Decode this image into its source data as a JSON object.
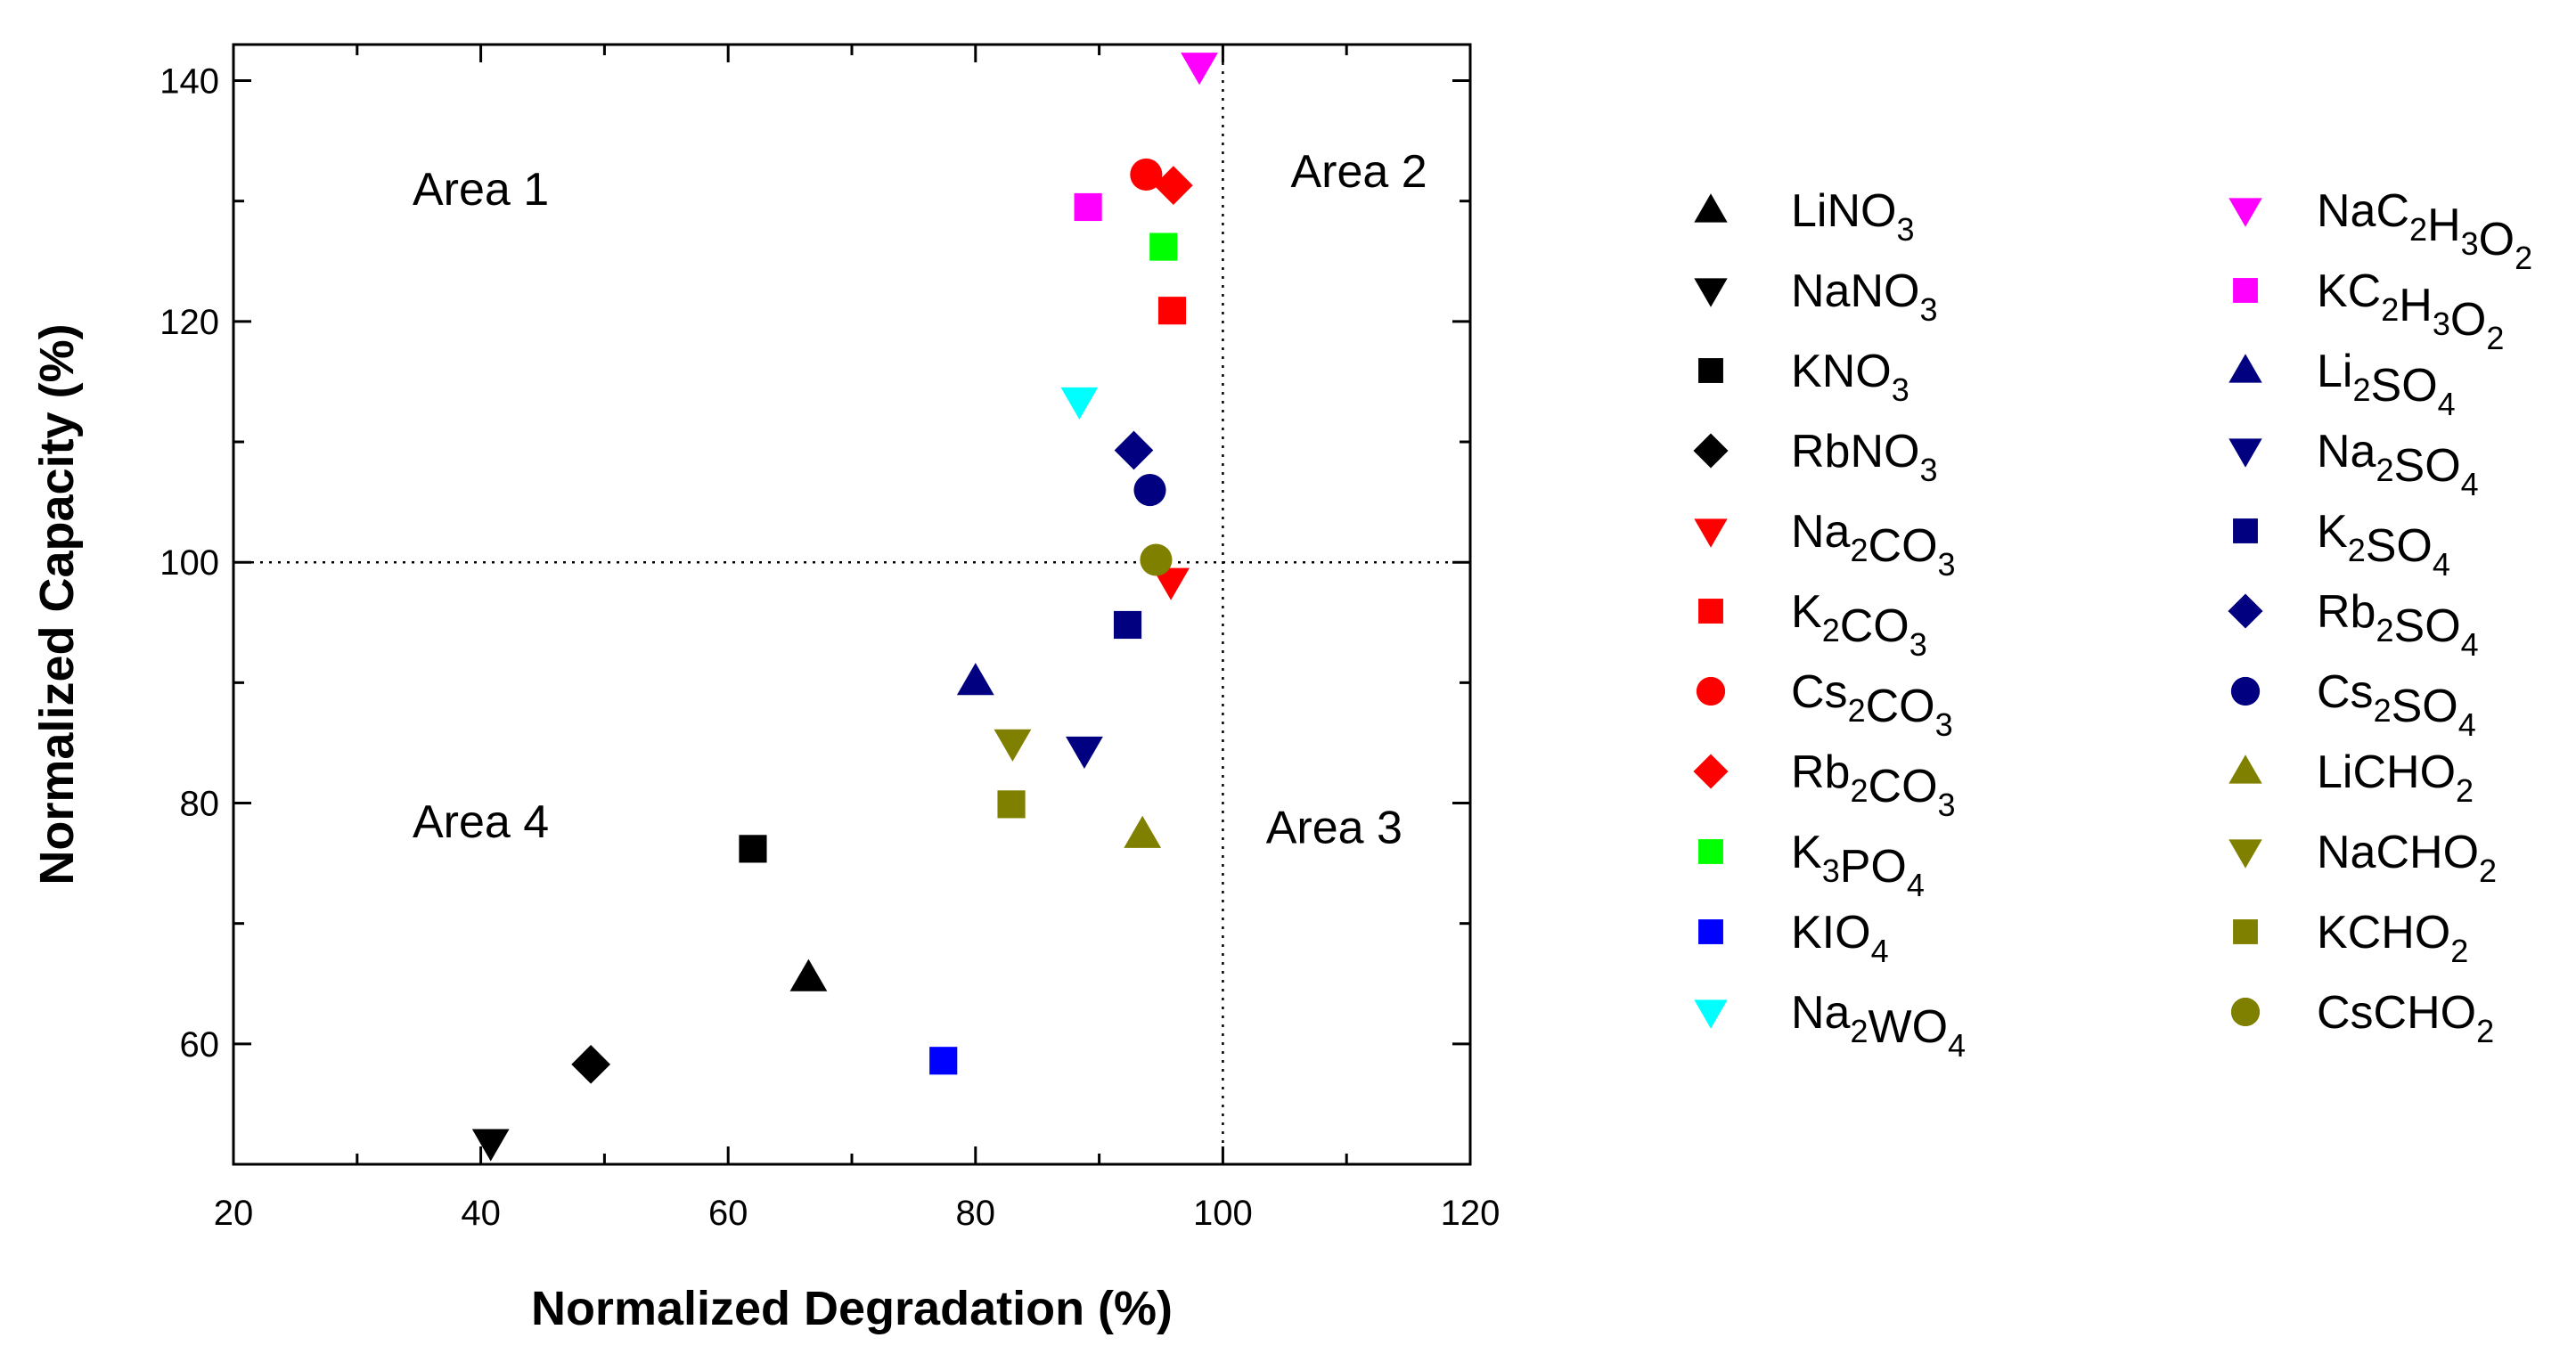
{
  "chart_data": {
    "type": "scatter",
    "title": "",
    "xlabel": "Normalized Degradation (%)",
    "ylabel": "Normalized Capacity (%)",
    "xlim": [
      20,
      120
    ],
    "ylim": [
      50,
      143
    ],
    "xticks": [
      20,
      40,
      60,
      80,
      100,
      120
    ],
    "yticks": [
      60,
      80,
      100,
      120,
      140
    ],
    "grid": false,
    "reference_lines": {
      "x": 100,
      "y": 100,
      "style": "dotted"
    },
    "annotations": [
      {
        "text": "Area 1",
        "x": 40,
        "y": 131
      },
      {
        "text": "Area 2",
        "x": 111,
        "y": 132.5
      },
      {
        "text": "Area 3",
        "x": 109,
        "y": 78
      },
      {
        "text": "Area 4",
        "x": 40,
        "y": 78.5
      }
    ],
    "legend_position": "right",
    "series": [
      {
        "name": "LiNO3",
        "label": [
          [
            "Li",
            ""
          ],
          [
            "NO",
            "3"
          ]
        ],
        "marker": "triangle-up",
        "color": "#000000",
        "points": [
          [
            66.5,
            65.5
          ]
        ]
      },
      {
        "name": "NaNO3",
        "label": [
          [
            "Na",
            ""
          ],
          [
            "NO",
            "3"
          ]
        ],
        "marker": "triangle-down",
        "color": "#000000",
        "points": [
          [
            40.8,
            51.8
          ]
        ]
      },
      {
        "name": "KNO3",
        "label": [
          [
            "K",
            ""
          ],
          [
            "NO",
            "3"
          ]
        ],
        "marker": "square",
        "color": "#000000",
        "points": [
          [
            62.0,
            76.2
          ]
        ]
      },
      {
        "name": "RbNO3",
        "label": [
          [
            "Rb",
            ""
          ],
          [
            "NO",
            "3"
          ]
        ],
        "marker": "diamond",
        "color": "#000000",
        "points": [
          [
            48.9,
            58.3
          ]
        ]
      },
      {
        "name": "Na2CO3",
        "label": [
          [
            "Na",
            "2"
          ],
          [
            "CO",
            "3"
          ]
        ],
        "marker": "triangle-down",
        "color": "#ff0000",
        "points": [
          [
            95.8,
            98.4
          ]
        ]
      },
      {
        "name": "K2CO3",
        "label": [
          [
            "K",
            "2"
          ],
          [
            "CO",
            "3"
          ]
        ],
        "marker": "square",
        "color": "#ff0000",
        "points": [
          [
            95.9,
            120.9
          ]
        ]
      },
      {
        "name": "Cs2CO3",
        "label": [
          [
            "Cs",
            "2"
          ],
          [
            "CO",
            "3"
          ]
        ],
        "marker": "circle",
        "color": "#ff0000",
        "points": [
          [
            93.8,
            132.2
          ]
        ]
      },
      {
        "name": "Rb2CO3",
        "label": [
          [
            "Rb",
            "2"
          ],
          [
            "CO",
            "3"
          ]
        ],
        "marker": "diamond",
        "color": "#ff0000",
        "points": [
          [
            96.0,
            131.3
          ]
        ]
      },
      {
        "name": "K3PO4",
        "label": [
          [
            "K",
            "3"
          ],
          [
            "PO",
            "4"
          ]
        ],
        "marker": "square",
        "color": "#00ff00",
        "points": [
          [
            95.2,
            126.2
          ]
        ]
      },
      {
        "name": "KIO4",
        "label": [
          [
            "KIO",
            "4"
          ]
        ],
        "marker": "square",
        "color": "#0000ff",
        "points": [
          [
            77.4,
            58.6
          ]
        ]
      },
      {
        "name": "Na2WO4",
        "label": [
          [
            "Na",
            "2"
          ],
          [
            "WO",
            "4"
          ]
        ],
        "marker": "triangle-down",
        "color": "#00ffff",
        "points": [
          [
            88.4,
            113.4
          ]
        ]
      },
      {
        "name": "NaC2H3O2",
        "label": [
          [
            "NaC",
            "2"
          ],
          [
            "H",
            "3"
          ],
          [
            "O",
            "2"
          ]
        ],
        "marker": "triangle-down",
        "color": "#ff00ff",
        "points": [
          [
            98.1,
            141.2
          ]
        ]
      },
      {
        "name": "KC2H3O2",
        "label": [
          [
            "KC",
            "2"
          ],
          [
            "H",
            "3"
          ],
          [
            "O",
            "2"
          ]
        ],
        "marker": "square",
        "color": "#ff00ff",
        "points": [
          [
            89.1,
            129.5
          ]
        ]
      },
      {
        "name": "Li2SO4",
        "label": [
          [
            "Li",
            "2"
          ],
          [
            "SO",
            "4"
          ]
        ],
        "marker": "triangle-up",
        "color": "#000080",
        "points": [
          [
            80.0,
            90.1
          ]
        ]
      },
      {
        "name": "Na2SO4",
        "label": [
          [
            "Na",
            "2"
          ],
          [
            "SO",
            "4"
          ]
        ],
        "marker": "triangle-down",
        "color": "#000080",
        "points": [
          [
            88.8,
            84.4
          ]
        ]
      },
      {
        "name": "K2SO4",
        "label": [
          [
            "K",
            "2"
          ],
          [
            "SO",
            "4"
          ]
        ],
        "marker": "square",
        "color": "#000080",
        "points": [
          [
            92.3,
            94.8
          ]
        ]
      },
      {
        "name": "Rb2SO4",
        "label": [
          [
            "Rb",
            "2"
          ],
          [
            "SO",
            "4"
          ]
        ],
        "marker": "diamond",
        "color": "#000080",
        "points": [
          [
            92.8,
            109.3
          ]
        ]
      },
      {
        "name": "Cs2SO4",
        "label": [
          [
            "Cs",
            "2"
          ],
          [
            "SO",
            "4"
          ]
        ],
        "marker": "circle",
        "color": "#000080",
        "points": [
          [
            94.1,
            106.0
          ]
        ]
      },
      {
        "name": "LiCHO2",
        "label": [
          [
            "LiCHO",
            "2"
          ]
        ],
        "marker": "triangle-up",
        "color": "#808000",
        "points": [
          [
            93.5,
            77.4
          ]
        ]
      },
      {
        "name": "NaCHO2",
        "label": [
          [
            "NaCHO",
            "2"
          ]
        ],
        "marker": "triangle-down",
        "color": "#808000",
        "points": [
          [
            83.0,
            85.0
          ]
        ]
      },
      {
        "name": "KCHO2",
        "label": [
          [
            "KCHO",
            "2"
          ]
        ],
        "marker": "square",
        "color": "#808000",
        "points": [
          [
            82.9,
            79.9
          ]
        ]
      },
      {
        "name": "CsCHO2",
        "label": [
          [
            "CsCHO",
            "2"
          ]
        ],
        "marker": "circle",
        "color": "#808000",
        "points": [
          [
            94.6,
            100.2
          ]
        ]
      }
    ]
  }
}
